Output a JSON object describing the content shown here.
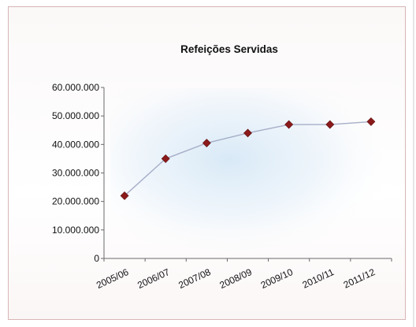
{
  "chart_data": {
    "type": "line",
    "title": "Refeições Servidas",
    "xlabel": "",
    "ylabel": "",
    "categories": [
      "2005/06",
      "2006/07",
      "2007/08",
      "2008/09",
      "2009/10",
      "2010/11",
      "2011/12"
    ],
    "series": [
      {
        "values": [
          22000000,
          35000000,
          40500000,
          44000000,
          47000000,
          47000000,
          48000000
        ]
      }
    ],
    "ylim": [
      0,
      60000000
    ],
    "yticks": [
      0,
      10000000,
      20000000,
      30000000,
      40000000,
      50000000,
      60000000
    ],
    "ytick_labels": [
      "0",
      "10.000.000",
      "20.000.000",
      "30.000.000",
      "40.000.000",
      "50.000.000",
      "60.000.000"
    ],
    "grid": false,
    "legend": "none",
    "colors": {
      "line": "#a7aec8",
      "marker": "#8b1a1a",
      "frame_border": "#d8b5b5",
      "plot_glow": "#dcebf6"
    },
    "marker": "diamond"
  }
}
